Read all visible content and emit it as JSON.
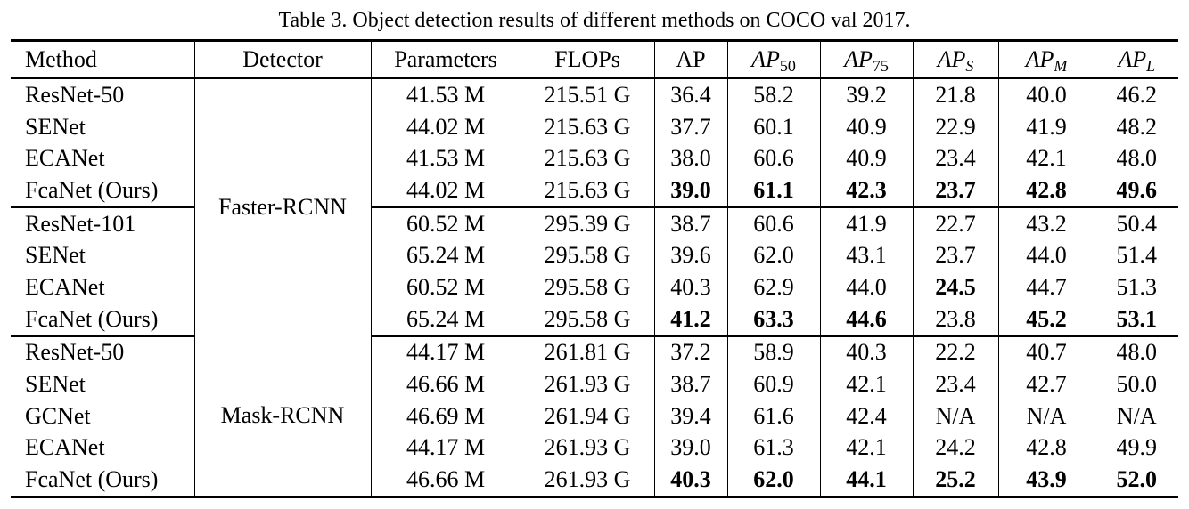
{
  "caption": "Table 3. Object detection results of different methods on COCO val 2017.",
  "headers": {
    "method": "Method",
    "detector": "Detector",
    "parameters": "Parameters",
    "flops": "FLOPs",
    "ap": "AP",
    "ap50": {
      "base": "AP",
      "sub": "50"
    },
    "ap75": {
      "base": "AP",
      "sub": "75"
    },
    "aps": {
      "base": "AP",
      "sub": "S"
    },
    "apm": {
      "base": "AP",
      "sub": "M"
    },
    "apl": {
      "base": "AP",
      "sub": "L"
    }
  },
  "groups": [
    {
      "detector": "Faster-RCNN",
      "rows": [
        {
          "method": "ResNet-50",
          "params": "41.53 M",
          "flops": "215.51 G",
          "ap": "36.4",
          "ap50": "58.2",
          "ap75": "39.2",
          "aps": "21.8",
          "apm": "40.0",
          "apl": "46.2"
        },
        {
          "method": "SENet",
          "params": "44.02 M",
          "flops": "215.63 G",
          "ap": "37.7",
          "ap50": "60.1",
          "ap75": "40.9",
          "aps": "22.9",
          "apm": "41.9",
          "apl": "48.2"
        },
        {
          "method": "ECANet",
          "params": "41.53 M",
          "flops": "215.63 G",
          "ap": "38.0",
          "ap50": "60.6",
          "ap75": "40.9",
          "aps": "23.4",
          "apm": "42.1",
          "apl": "48.0"
        },
        {
          "method": "FcaNet (Ours)",
          "params": "44.02 M",
          "flops": "215.63 G",
          "ap": "39.0",
          "ap50": "61.1",
          "ap75": "42.3",
          "aps": "23.7",
          "apm": "42.8",
          "apl": "49.6"
        },
        {
          "method": "ResNet-101",
          "params": "60.52 M",
          "flops": "295.39 G",
          "ap": "38.7",
          "ap50": "60.6",
          "ap75": "41.9",
          "aps": "22.7",
          "apm": "43.2",
          "apl": "50.4"
        },
        {
          "method": "SENet",
          "params": "65.24 M",
          "flops": "295.58 G",
          "ap": "39.6",
          "ap50": "62.0",
          "ap75": "43.1",
          "aps": "23.7",
          "apm": "44.0",
          "apl": "51.4"
        },
        {
          "method": "ECANet",
          "params": "60.52 M",
          "flops": "295.58 G",
          "ap": "40.3",
          "ap50": "62.9",
          "ap75": "44.0",
          "aps": "24.5",
          "apm": "44.7",
          "apl": "51.3"
        },
        {
          "method": "FcaNet (Ours)",
          "params": "65.24 M",
          "flops": "295.58 G",
          "ap": "41.2",
          "ap50": "63.3",
          "ap75": "44.6",
          "aps": "23.8",
          "apm": "45.2",
          "apl": "53.1"
        }
      ]
    },
    {
      "detector": "Mask-RCNN",
      "rows": [
        {
          "method": "ResNet-50",
          "params": "44.17 M",
          "flops": "261.81 G",
          "ap": "37.2",
          "ap50": "58.9",
          "ap75": "40.3",
          "aps": "22.2",
          "apm": "40.7",
          "apl": "48.0"
        },
        {
          "method": "SENet",
          "params": "46.66 M",
          "flops": "261.93 G",
          "ap": "38.7",
          "ap50": "60.9",
          "ap75": "42.1",
          "aps": "23.4",
          "apm": "42.7",
          "apl": "50.0"
        },
        {
          "method": "GCNet",
          "params": "46.69 M",
          "flops": "261.94 G",
          "ap": "39.4",
          "ap50": "61.6",
          "ap75": "42.4",
          "aps": "N/A",
          "apm": "N/A",
          "apl": "N/A"
        },
        {
          "method": "ECANet",
          "params": "44.17 M",
          "flops": "261.93 G",
          "ap": "39.0",
          "ap50": "61.3",
          "ap75": "42.1",
          "aps": "24.2",
          "apm": "42.8",
          "apl": "49.9"
        },
        {
          "method": "FcaNet (Ours)",
          "params": "46.66 M",
          "flops": "261.93 G",
          "ap": "40.3",
          "ap50": "62.0",
          "ap75": "44.1",
          "aps": "25.2",
          "apm": "43.9",
          "apl": "52.0"
        }
      ]
    }
  ]
}
